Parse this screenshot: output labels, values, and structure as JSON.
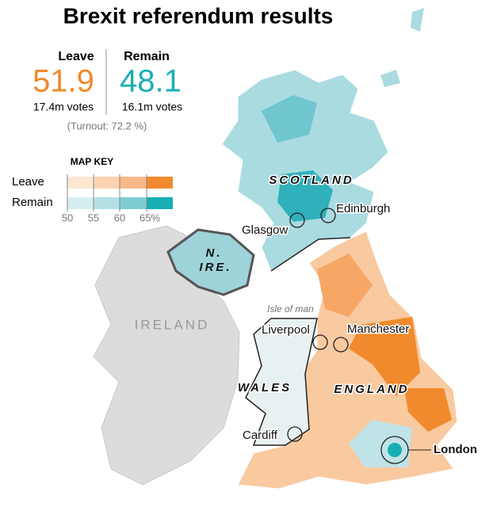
{
  "title": "Brexit referendum results",
  "results": [
    {
      "label": "Leave",
      "percent": "51.9",
      "votes": "17.4m votes",
      "color": "#f08a2c"
    },
    {
      "label": "Remain",
      "percent": "48.1",
      "votes": "16.1m votes",
      "color": "#17aeb4"
    }
  ],
  "turnout": "(Turnout: 72.2 %)",
  "map_key": {
    "title": "MAP KEY",
    "rows": [
      "Leave",
      "Remain"
    ],
    "ticks": [
      "50",
      "55",
      "60",
      "65%"
    ]
  },
  "regions": {
    "scotland": "SCOTLAND",
    "n_ire": [
      "N.",
      "IRE."
    ],
    "ireland": "IRELAND",
    "wales": "WALES",
    "england": "ENGLAND"
  },
  "places": {
    "edinburgh": "Edinburgh",
    "glasgow": "Glasgow",
    "isle_of_man": "Isle of man",
    "liverpool": "Liverpool",
    "manchester": "Manchester",
    "cardiff": "Cardiff",
    "london": "London"
  }
}
